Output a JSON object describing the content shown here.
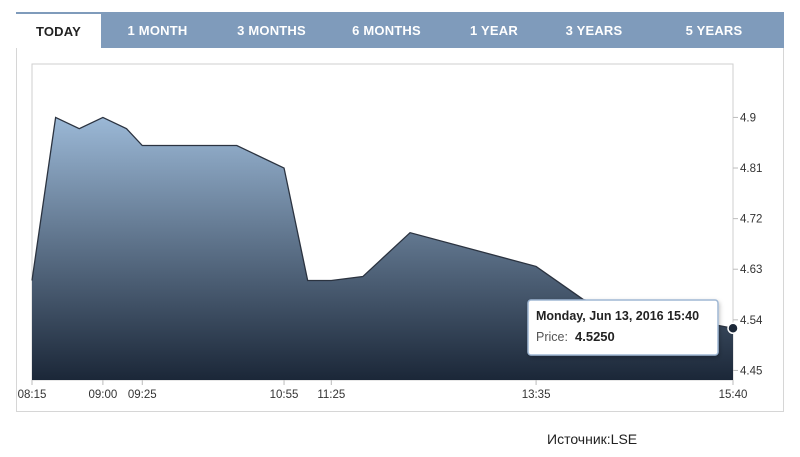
{
  "tabs": [
    {
      "label": "TODAY",
      "active": true
    },
    {
      "label": "1 MONTH",
      "active": false
    },
    {
      "label": "3 MONTHS",
      "active": false
    },
    {
      "label": "6 MONTHS",
      "active": false
    },
    {
      "label": "1 YEAR",
      "active": false
    },
    {
      "label": "3 YEARS",
      "active": false
    },
    {
      "label": "5 YEARS",
      "active": false
    }
  ],
  "tooltip": {
    "date": "Monday, Jun 13, 2016 15:40",
    "price_label": "Price:",
    "price_value": "4.5250"
  },
  "source": "Источник:LSE",
  "colors": {
    "tab_bar": "#7f9bbb",
    "area_top": "#9bb8d6",
    "area_bottom": "#1b2738",
    "line": "#2b3340"
  },
  "chart_data": {
    "type": "area",
    "x": [
      "08:15",
      "08:30",
      "08:45",
      "09:00",
      "09:15",
      "09:25",
      "10:25",
      "10:55",
      "11:10",
      "11:25",
      "11:45",
      "12:15",
      "13:35",
      "14:05",
      "15:40"
    ],
    "values": [
      4.61,
      4.9,
      4.88,
      4.9,
      4.88,
      4.85,
      4.85,
      4.81,
      4.61,
      4.61,
      4.617,
      4.695,
      4.635,
      4.576,
      4.525
    ],
    "xticks": [
      "08:15",
      "09:00",
      "09:25",
      "10:55",
      "11:25",
      "13:35",
      "15:40"
    ],
    "yticks": [
      4.9,
      4.81,
      4.72,
      4.63,
      4.54,
      4.45
    ],
    "ylim": [
      4.433,
      4.995
    ],
    "grid": false,
    "legend": false
  }
}
